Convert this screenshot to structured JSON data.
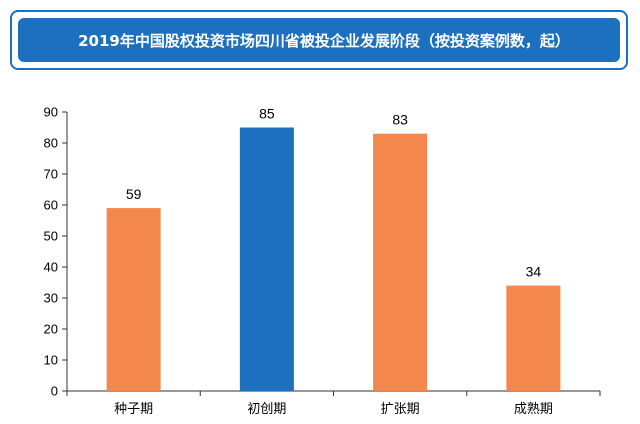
{
  "chart_data": {
    "type": "bar",
    "title": "2019年中国股权投资市场四川省被投企业发展阶段（按投资案例数，起）",
    "categories": [
      "种子期",
      "初创期",
      "扩张期",
      "成熟期"
    ],
    "values": [
      59,
      85,
      83,
      34
    ],
    "bar_colors": [
      "#f4874b",
      "#1d6fbf",
      "#f4874b",
      "#f4874b"
    ],
    "ylim": [
      0,
      90
    ],
    "yticks": [
      "0",
      "10",
      "20",
      "30",
      "40",
      "50",
      "60",
      "70",
      "80",
      "90"
    ],
    "grid": false,
    "legend": "none",
    "data_labels": true,
    "xlabel": "",
    "ylabel": ""
  },
  "colors": {
    "accent": "#1d6fbf",
    "bar_orange": "#f4874b",
    "axis": "#333333"
  }
}
